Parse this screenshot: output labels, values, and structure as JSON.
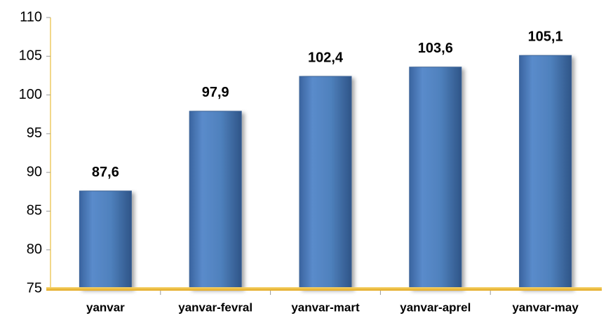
{
  "chart_data": {
    "type": "bar",
    "categories": [
      "yanvar",
      "yanvar-fevral",
      "yanvar-mart",
      "yanvar-aprel",
      "yanvar-may"
    ],
    "values": [
      87.6,
      97.9,
      102.4,
      103.6,
      105.1
    ],
    "value_labels": [
      "87,6",
      "97,9",
      "102,4",
      "103,6",
      "105,1"
    ],
    "color": "#4f81bd",
    "ylim": [
      75,
      110
    ],
    "yticks": [
      75,
      80,
      85,
      90,
      95,
      100,
      105,
      110
    ],
    "grid": false
  }
}
